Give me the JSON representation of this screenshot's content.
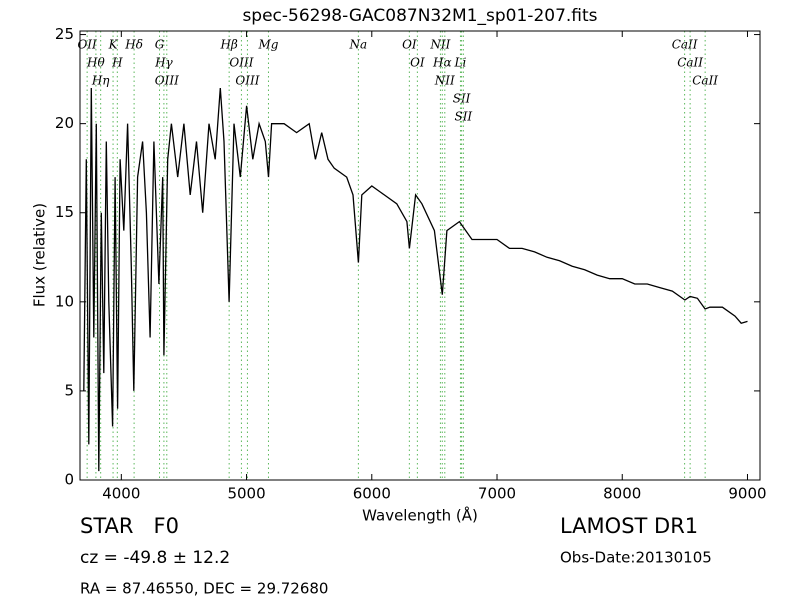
{
  "chart_data": {
    "type": "line",
    "title": "spec-56298-GAC087N32M1_sp01-207.fits",
    "x_label": "Wavelength (Å)",
    "y_label": "Flux (relative)",
    "xlim": [
      3670,
      9100
    ],
    "ylim": [
      0,
      25.2
    ],
    "xticks": [
      4000,
      5000,
      6000,
      7000,
      8000,
      9000
    ],
    "yticks": [
      0,
      5,
      10,
      15,
      20,
      25
    ],
    "series": [
      {
        "color": "#000000",
        "x": [
          3700,
          3720,
          3740,
          3760,
          3780,
          3800,
          3820,
          3840,
          3860,
          3880,
          3900,
          3930,
          3950,
          3970,
          3990,
          4020,
          4050,
          4080,
          4100,
          4130,
          4170,
          4200,
          4230,
          4260,
          4300,
          4330,
          4340,
          4370,
          4400,
          4450,
          4500,
          4550,
          4600,
          4650,
          4700,
          4750,
          4790,
          4820,
          4861,
          4900,
          4950,
          5000,
          5050,
          5100,
          5150,
          5175,
          5200,
          5300,
          5400,
          5500,
          5550,
          5600,
          5650,
          5700,
          5800,
          5850,
          5893,
          5920,
          6000,
          6100,
          6200,
          6280,
          6300,
          6350,
          6400,
          6500,
          6563,
          6600,
          6700,
          6800,
          6900,
          7000,
          7100,
          7200,
          7300,
          7400,
          7500,
          7600,
          7700,
          7800,
          7900,
          8000,
          8100,
          8200,
          8300,
          8400,
          8500,
          8542,
          8600,
          8662,
          8700,
          8800,
          8900,
          8950,
          9000
        ],
        "values": [
          5,
          18,
          2,
          22,
          8,
          20,
          0.5,
          15,
          6,
          19,
          10,
          3,
          17,
          4,
          18,
          14,
          20,
          12,
          5,
          17,
          19,
          15,
          8,
          19,
          11,
          17,
          7,
          18,
          20,
          17,
          20,
          16,
          19,
          15,
          20,
          18,
          22,
          19,
          10,
          20,
          17,
          21,
          18,
          20,
          19,
          17,
          20,
          20,
          19.5,
          20,
          18,
          19.5,
          18,
          17.5,
          17,
          16,
          12.2,
          16,
          16.5,
          16,
          15.5,
          14.5,
          13,
          16,
          15.5,
          14,
          10.4,
          14,
          14.5,
          13.5,
          13.5,
          13.5,
          13,
          13,
          12.8,
          12.5,
          12.3,
          12,
          11.8,
          11.5,
          11.3,
          11.3,
          11,
          11,
          10.8,
          10.6,
          10.1,
          10.3,
          10.2,
          9.6,
          9.7,
          9.7,
          9.2,
          8.8,
          8.9
        ]
      }
    ],
    "lines": [
      {
        "label": "OII",
        "x": 3727
      },
      {
        "label": "Hθ",
        "x": 3797
      },
      {
        "label": "Hη",
        "x": 3835
      },
      {
        "label": "K",
        "x": 3934
      },
      {
        "label": "H",
        "x": 3968
      },
      {
        "label": "Hδ",
        "x": 4102
      },
      {
        "label": "G",
        "x": 4305
      },
      {
        "label": "Hγ",
        "x": 4340
      },
      {
        "label": "OIII",
        "x": 4363
      },
      {
        "label": "Hβ",
        "x": 4861
      },
      {
        "label": "OIII",
        "x": 4959
      },
      {
        "label": "OIII",
        "x": 5007
      },
      {
        "label": "Mg",
        "x": 5175
      },
      {
        "label": "Na",
        "x": 5893
      },
      {
        "label": "OI",
        "x": 6300
      },
      {
        "label": "OI",
        "x": 6364
      },
      {
        "label": "NII",
        "x": 6548
      },
      {
        "label": "Hα",
        "x": 6563
      },
      {
        "label": "NII",
        "x": 6583
      },
      {
        "label": "Li",
        "x": 6708
      },
      {
        "label": "SII",
        "x": 6717
      },
      {
        "label": "SII",
        "x": 6731
      },
      {
        "label": "CaII",
        "x": 8498
      },
      {
        "label": "CaII",
        "x": 8542
      },
      {
        "label": "CaII",
        "x": 8662
      }
    ],
    "line_color": "#5cb85c",
    "class_text": "STAR   F0",
    "cz_text": "cz = -49.8 ± 12.2",
    "coord_text": "RA = 87.46550, DEC = 29.72680",
    "survey_text": "LAMOST DR1",
    "date_text": "Obs-Date:20130105"
  }
}
